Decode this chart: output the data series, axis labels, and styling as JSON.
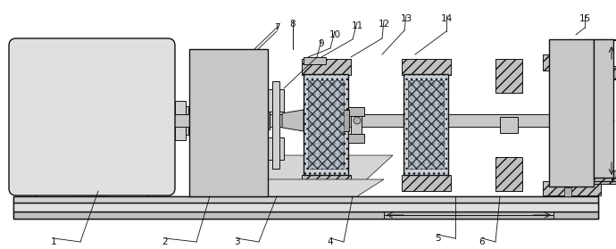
{
  "bg_color": "#ffffff",
  "fig_width": 6.9,
  "fig_height": 2.79,
  "dpi": 100,
  "lc": "#111111",
  "gray1": "#e8e8e8",
  "gray2": "#d0d0d0",
  "gray3": "#b8b8b8",
  "gray4": "#989898",
  "gray5": "#787878",
  "gray_light_blue": "#c8d0d8"
}
